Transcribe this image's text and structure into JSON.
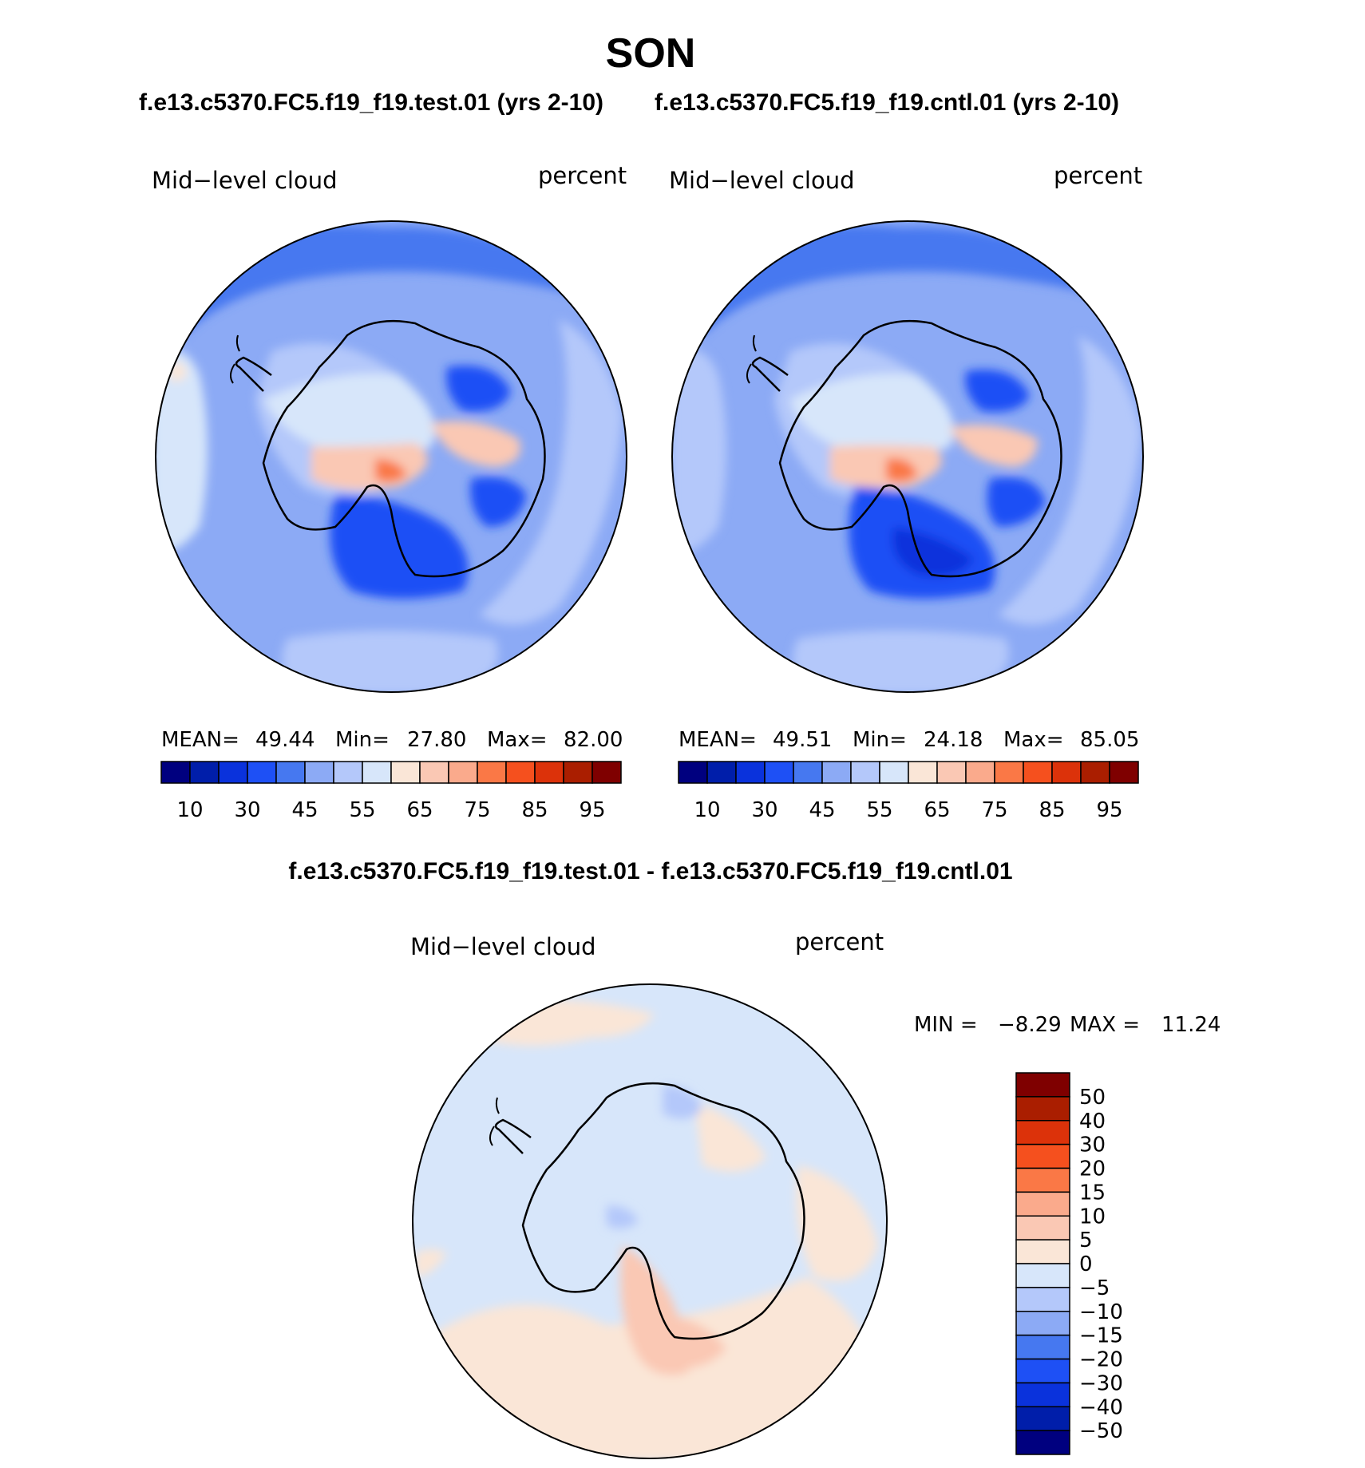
{
  "title": "SON",
  "colors": {
    "abs": [
      "#00007f",
      "#001eaa",
      "#0a32dc",
      "#1e50f5",
      "#4678f0",
      "#8caaf5",
      "#b4c8fa",
      "#d7e6fa",
      "#fae6d7",
      "#fac8b4",
      "#faaa8c",
      "#fa7846",
      "#f5501e",
      "#dc320a",
      "#aa1e00",
      "#7f0000"
    ],
    "diff": [
      "#00007f",
      "#001eaa",
      "#0a32dc",
      "#1e50f5",
      "#4678f0",
      "#8caaf5",
      "#b4c8fa",
      "#d7e6fa",
      "#fae6d7",
      "#fac8b4",
      "#faaa8c",
      "#fa7846",
      "#f5501e",
      "#dc320a",
      "#aa1e00",
      "#7f0000"
    ]
  },
  "chart_data": [
    {
      "type": "heatmap",
      "id": "test",
      "title": "f.e13.c5370.FC5.f19_f19.test.01 (yrs 2-10)",
      "variable": "Mid−level cloud",
      "units": "percent",
      "stats": {
        "mean_label": "MEAN=",
        "mean": "49.44",
        "min_label": "Min=",
        "min": "27.80",
        "max_label": "Max=",
        "max": "82.00"
      },
      "colorbar": {
        "orientation": "horizontal",
        "tick_labels": [
          "10",
          "30",
          "45",
          "55",
          "65",
          "75",
          "85",
          "95"
        ]
      }
    },
    {
      "type": "heatmap",
      "id": "cntl",
      "title": "f.e13.c5370.FC5.f19_f19.cntl.01 (yrs 2-10)",
      "variable": "Mid−level cloud",
      "units": "percent",
      "stats": {
        "mean_label": "MEAN=",
        "mean": "49.51",
        "min_label": "Min=",
        "min": "24.18",
        "max_label": "Max=",
        "max": "85.05"
      },
      "colorbar": {
        "orientation": "horizontal",
        "tick_labels": [
          "10",
          "30",
          "45",
          "55",
          "65",
          "75",
          "85",
          "95"
        ]
      }
    },
    {
      "type": "heatmap",
      "id": "diff",
      "title": "f.e13.c5370.FC5.f19_f19.test.01 - f.e13.c5370.FC5.f19_f19.cntl.01",
      "variable": "Mid−level cloud",
      "units": "percent",
      "stats": {
        "min_label": "MIN =",
        "min": "−8.29",
        "max_label": "MAX =",
        "max": "11.24"
      },
      "colorbar": {
        "orientation": "vertical",
        "tick_labels": [
          "50",
          "40",
          "30",
          "20",
          "15",
          "10",
          "5",
          "0",
          "−5",
          "−10",
          "−15",
          "−20",
          "−30",
          "−40",
          "−50"
        ]
      }
    }
  ]
}
